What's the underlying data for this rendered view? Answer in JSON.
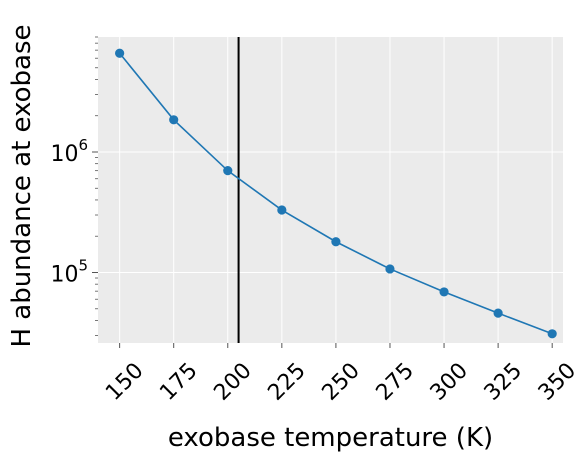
{
  "chart_data": {
    "type": "line",
    "xlabel": "exobase temperature (K)",
    "ylabel": "H abundance at exobase",
    "yscale": "log",
    "xlim": [
      140,
      355
    ],
    "ylim": [
      26000,
      9000000
    ],
    "xticks": [
      150,
      175,
      200,
      225,
      250,
      275,
      300,
      325,
      350
    ],
    "xtick_labels": [
      "150",
      "175",
      "200",
      "225",
      "250",
      "275",
      "300",
      "325",
      "350"
    ],
    "yticks_major": [
      100000,
      1000000
    ],
    "ytick_labels": [
      {
        "base": "10",
        "exp": "5"
      },
      {
        "base": "10",
        "exp": "6"
      }
    ],
    "grid": true,
    "background": "#ebebeb",
    "series": [
      {
        "color": "#1f77b4",
        "x": [
          150,
          175,
          200,
          225,
          250,
          275,
          300,
          325,
          350
        ],
        "y": [
          6600000,
          1850000,
          700000,
          330000,
          180000,
          107000,
          69000,
          46000,
          31000
        ]
      }
    ],
    "vline": {
      "x": 205,
      "color": "#000000"
    }
  }
}
